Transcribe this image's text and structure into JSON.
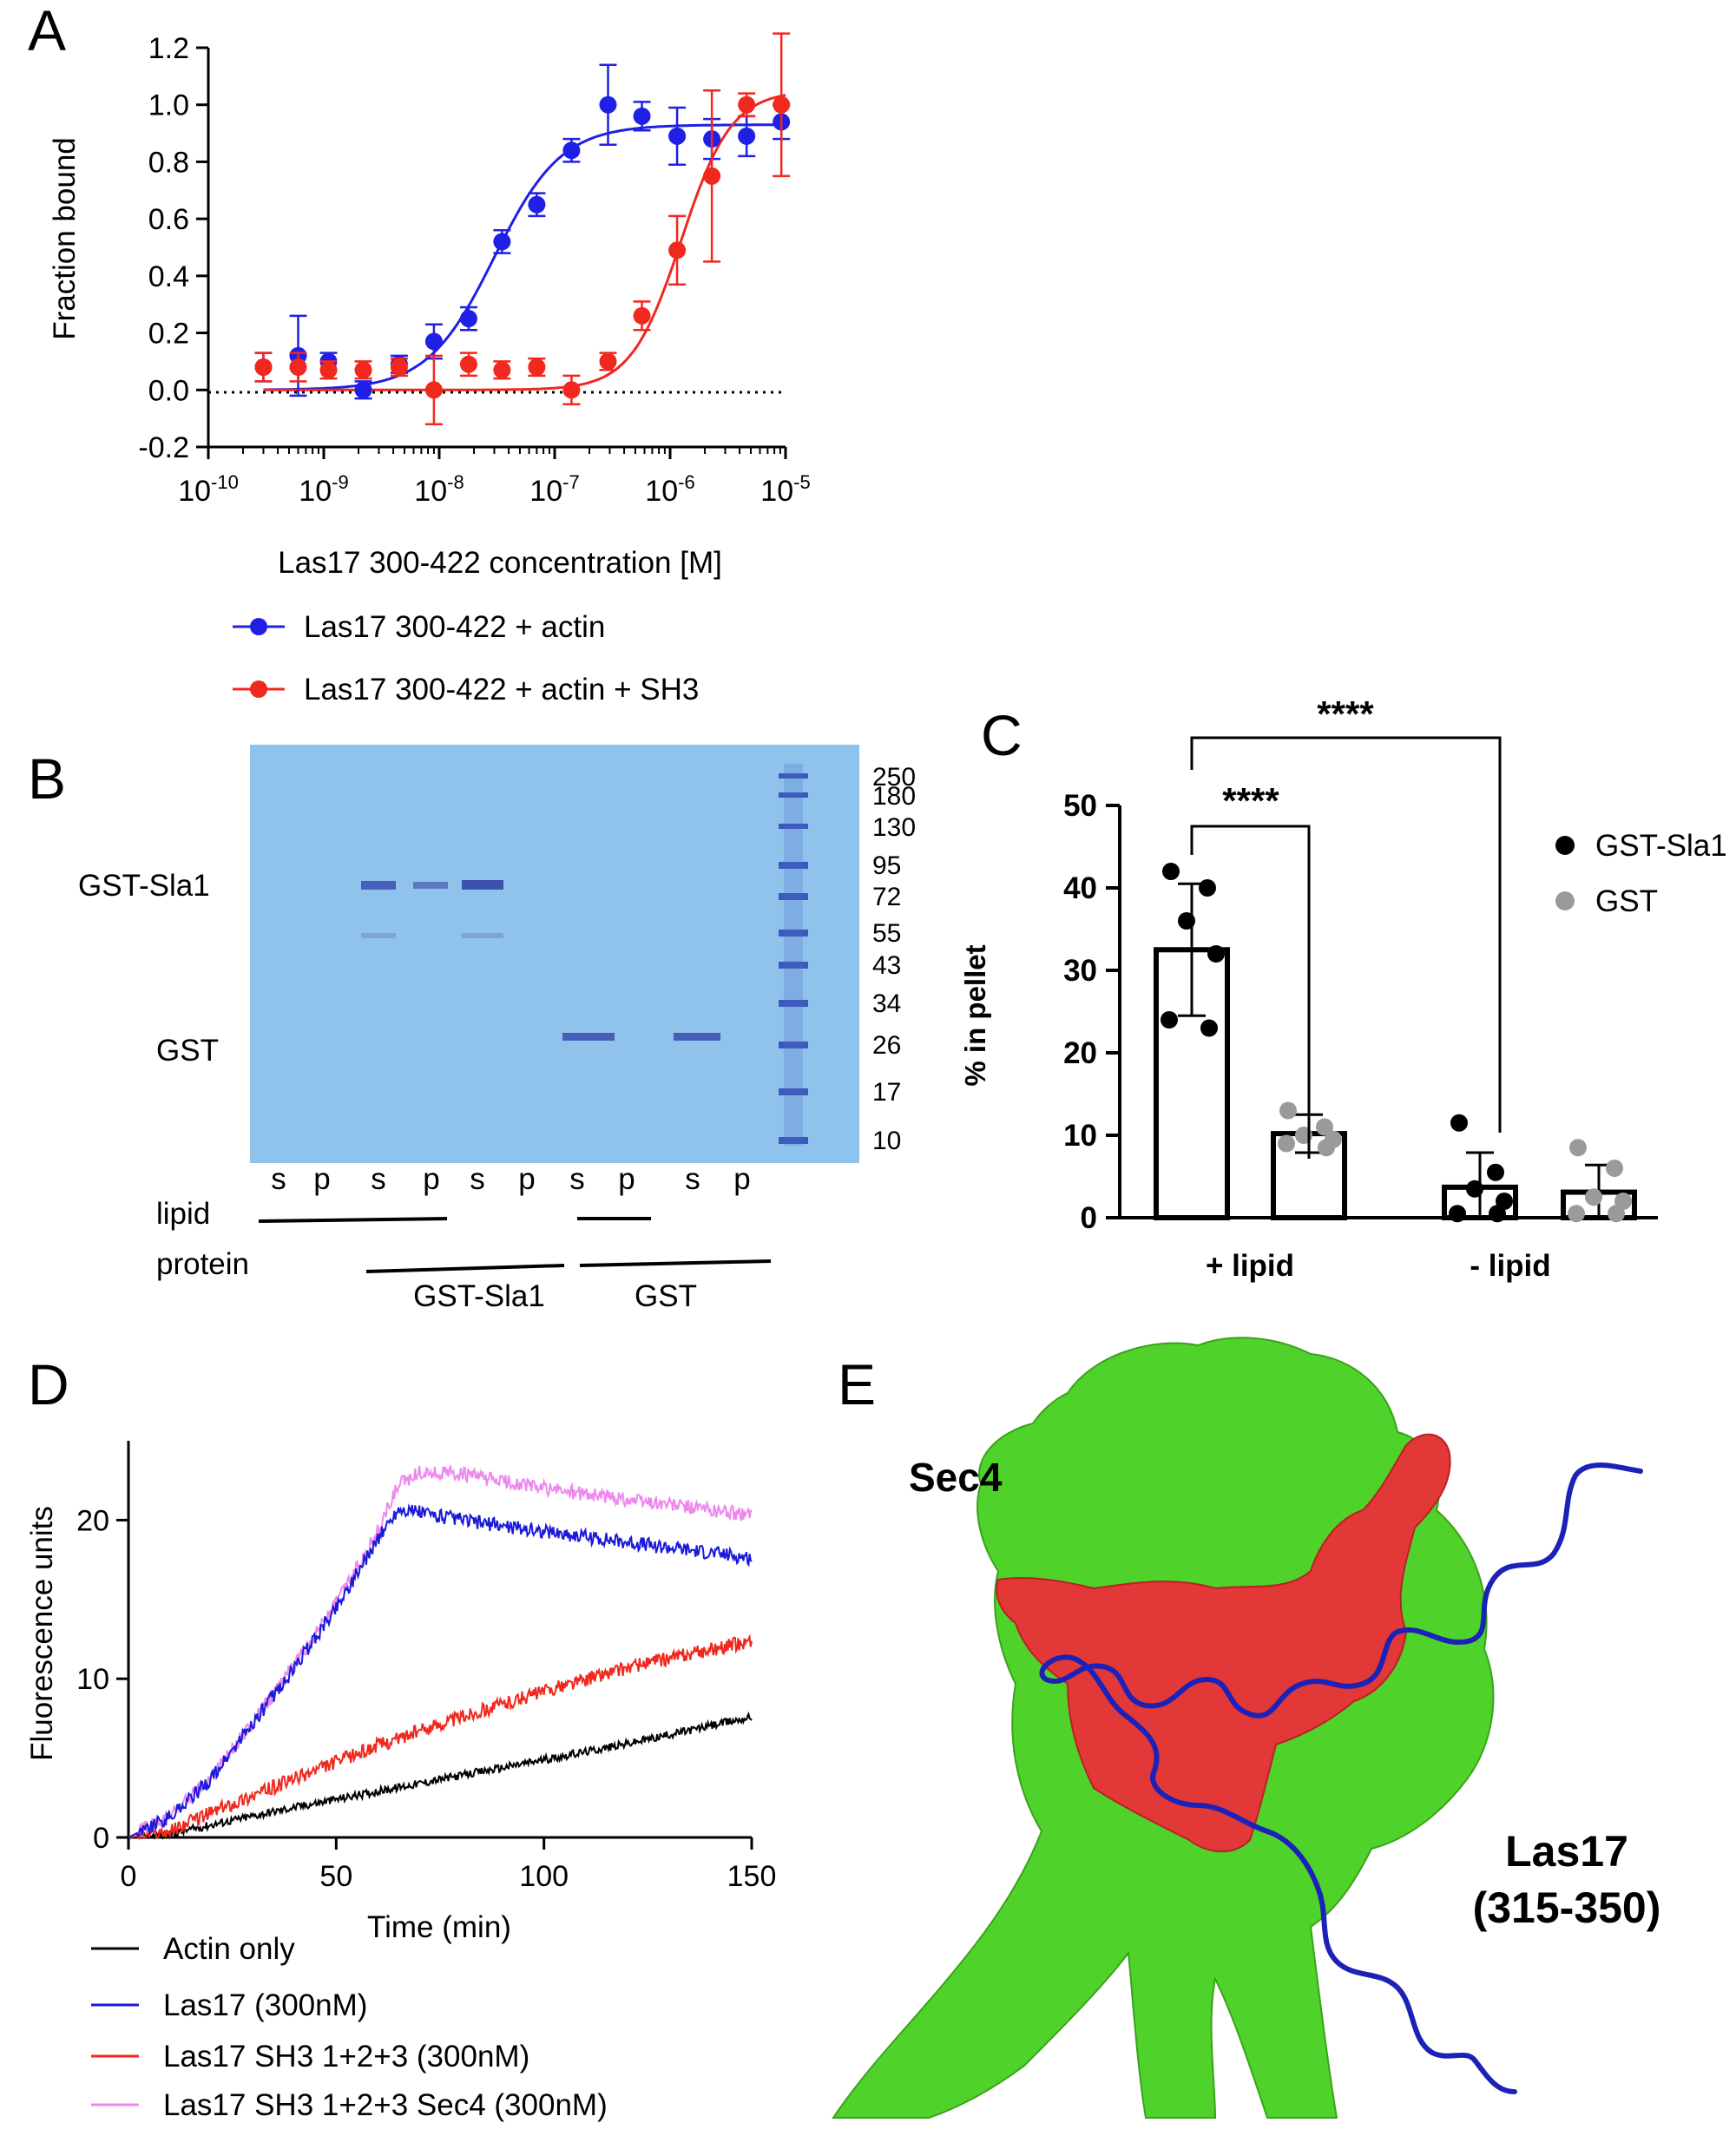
{
  "panel_letters": [
    "A",
    "B",
    "C",
    "D",
    "E"
  ],
  "panelA": {
    "ylabel": "Fraction bound",
    "xlabel": "Las17 300-422 concentration [M]",
    "yticks": [
      "-0.2",
      "0.0",
      "0.2",
      "0.4",
      "0.6",
      "0.8",
      "1.0",
      "1.2"
    ],
    "xticks": [
      {
        "base": "10",
        "exp": "-10"
      },
      {
        "base": "10",
        "exp": "-9"
      },
      {
        "base": "10",
        "exp": "-8"
      },
      {
        "base": "10",
        "exp": "-7"
      },
      {
        "base": "10",
        "exp": "-6"
      },
      {
        "base": "10",
        "exp": "-5"
      }
    ],
    "legend": [
      "Las17 300-422 + actin",
      "Las17 300-422 + actin + SH3"
    ],
    "colors": {
      "blue": "#1f1fe6",
      "red": "#f0281e"
    }
  },
  "panelB": {
    "left_labels": [
      "GST-Sla1",
      "GST"
    ],
    "marker_labels": [
      "250",
      "180",
      "130",
      "95",
      "72",
      "55",
      "43",
      "34",
      "26",
      "17",
      "10"
    ],
    "lane_labels": [
      "s",
      "p",
      "s",
      "p",
      "s",
      "p",
      "s",
      "p",
      "s",
      "p"
    ],
    "row_labels": [
      "lipid",
      "protein"
    ],
    "group_labels": [
      "GST-Sla1",
      "GST"
    ]
  },
  "panelC": {
    "ylabel": "% in pellet",
    "yticks": [
      "0",
      "10",
      "20",
      "30",
      "40",
      "50"
    ],
    "groups": [
      "+ lipid",
      "- lipid"
    ],
    "legend": [
      "GST-Sla1",
      "GST"
    ],
    "significance": [
      "****",
      "****"
    ]
  },
  "panelD": {
    "ylabel": "Fluorescence units",
    "xlabel": "Time (min)",
    "xticks": [
      "0",
      "50",
      "100",
      "150"
    ],
    "yticks": [
      "0",
      "10",
      "20"
    ],
    "legend": [
      "Actin only",
      "Las17 (300nM)",
      "Las17 SH3 1+2+3 (300nM)",
      "Las17 SH3 1+2+3 Sec4 (300nM)"
    ],
    "colors": {
      "black": "#000000",
      "blue": "#1a1ad9",
      "red": "#f0281e",
      "pink": "#ee88ee"
    }
  },
  "panelE": {
    "labels": [
      "Sec4",
      "Las17",
      "(315-350)"
    ],
    "colors": {
      "surface": "#4fd32a",
      "patch": "#e23838",
      "chain": "#1c22b8"
    }
  },
  "chart_data": [
    {
      "panel": "A",
      "type": "scatter",
      "xscale": "log",
      "xlim": [
        1e-10,
        1e-05
      ],
      "ylim": [
        -0.2,
        1.2
      ],
      "reference_line_y": 0,
      "xlabel": "Las17 300-422 concentration [M]",
      "ylabel": "Fraction bound",
      "series": [
        {
          "name": "Las17 300-422 + actin",
          "x": [
            3e-10,
            6e-10,
            1.1e-09,
            2.2e-09,
            4.5e-09,
            9e-09,
            1.8e-08,
            3.5e-08,
            7e-08,
            1.4e-07,
            2.9e-07,
            5.7e-07,
            1.15e-06,
            2.3e-06,
            4.6e-06,
            9.2e-06
          ],
          "y": [
            0.08,
            0.12,
            0.1,
            0.0,
            0.09,
            0.17,
            0.25,
            0.52,
            0.65,
            0.84,
            1.0,
            0.96,
            0.89,
            0.88,
            0.89,
            0.94
          ],
          "err": [
            0.05,
            0.14,
            0.03,
            0.03,
            0.03,
            0.06,
            0.04,
            0.04,
            0.04,
            0.04,
            0.14,
            0.05,
            0.1,
            0.07,
            0.07,
            0.06
          ]
        },
        {
          "name": "Las17 300-422 + actin + SH3",
          "x": [
            3e-10,
            6e-10,
            1.1e-09,
            2.2e-09,
            4.5e-09,
            9e-09,
            1.8e-08,
            3.5e-08,
            7e-08,
            1.4e-07,
            2.9e-07,
            5.7e-07,
            1.15e-06,
            2.3e-06,
            4.6e-06,
            9.2e-06
          ],
          "y": [
            0.08,
            0.08,
            0.07,
            0.07,
            0.08,
            0.0,
            0.09,
            0.07,
            0.08,
            0.0,
            0.1,
            0.26,
            0.49,
            0.75,
            1.0,
            1.0
          ],
          "err": [
            0.05,
            0.05,
            0.03,
            0.03,
            0.03,
            0.12,
            0.04,
            0.03,
            0.03,
            0.05,
            0.03,
            0.05,
            0.12,
            0.3,
            0.04,
            0.25
          ]
        }
      ],
      "fits": [
        {
          "name": "Las17 300-422 + actin",
          "bottom": 0.0,
          "top": 0.93,
          "ec50": 3e-08,
          "hill": 1.5
        },
        {
          "name": "Las17 300-422 + actin + SH3",
          "bottom": 0.0,
          "top": 1.05,
          "ec50": 1.25e-06,
          "hill": 2.0
        }
      ]
    },
    {
      "panel": "C",
      "type": "bar",
      "categories": [
        "+ lipid",
        "- lipid"
      ],
      "ylim": [
        0,
        50
      ],
      "ylabel": "% in pellet",
      "series": [
        {
          "name": "GST-Sla1",
          "values": [
            32.5,
            3.7
          ],
          "sd": [
            8.0,
            4.2
          ],
          "points": [
            [
              42,
              40,
              36,
              32,
              24,
              23
            ],
            [
              11.5,
              5.5,
              3.5,
              2,
              0.5,
              0.5
            ]
          ]
        },
        {
          "name": "GST",
          "values": [
            10.2,
            3.1
          ],
          "sd": [
            2.3,
            3.3
          ],
          "points": [
            [
              13,
              11,
              10,
              9.5,
              9,
              8.5
            ],
            [
              8.5,
              6,
              2.5,
              2,
              0.5,
              0.5
            ]
          ]
        }
      ],
      "annotations": [
        "****",
        "****"
      ]
    },
    {
      "panel": "D",
      "type": "line",
      "xlim": [
        0,
        150
      ],
      "ylim": [
        0,
        25
      ],
      "xlabel": "Time (min)",
      "ylabel": "Fluorescence units",
      "series": [
        {
          "name": "Actin only",
          "x": [
            0,
            10,
            20,
            40,
            60,
            80,
            100,
            120,
            150
          ],
          "y": [
            0,
            0.2,
            0.8,
            1.9,
            2.9,
            3.9,
            4.9,
            5.9,
            7.6
          ]
        },
        {
          "name": "Las17 (300nM)",
          "x": [
            0,
            10,
            20,
            30,
            40,
            50,
            60,
            65,
            70,
            80,
            100,
            120,
            150
          ],
          "y": [
            0,
            1.3,
            3.7,
            7.2,
            10.7,
            14.5,
            18.8,
            20.7,
            20.5,
            20.0,
            19.3,
            18.6,
            17.6
          ]
        },
        {
          "name": "Las17 SH3 1+2+3 (300nM)",
          "x": [
            0,
            10,
            20,
            40,
            60,
            80,
            100,
            120,
            150
          ],
          "y": [
            0,
            0.4,
            1.6,
            3.7,
            5.8,
            7.6,
            9.2,
            10.7,
            12.4
          ]
        },
        {
          "name": "Las17 SH3 1+2+3 Sec4 (300nM)",
          "x": [
            0,
            10,
            20,
            30,
            40,
            50,
            60,
            65,
            70,
            80,
            100,
            120,
            150
          ],
          "y": [
            0,
            1.4,
            3.8,
            7.3,
            10.9,
            14.8,
            19.3,
            22.2,
            23.0,
            22.9,
            22.0,
            21.3,
            20.3
          ]
        }
      ]
    }
  ]
}
